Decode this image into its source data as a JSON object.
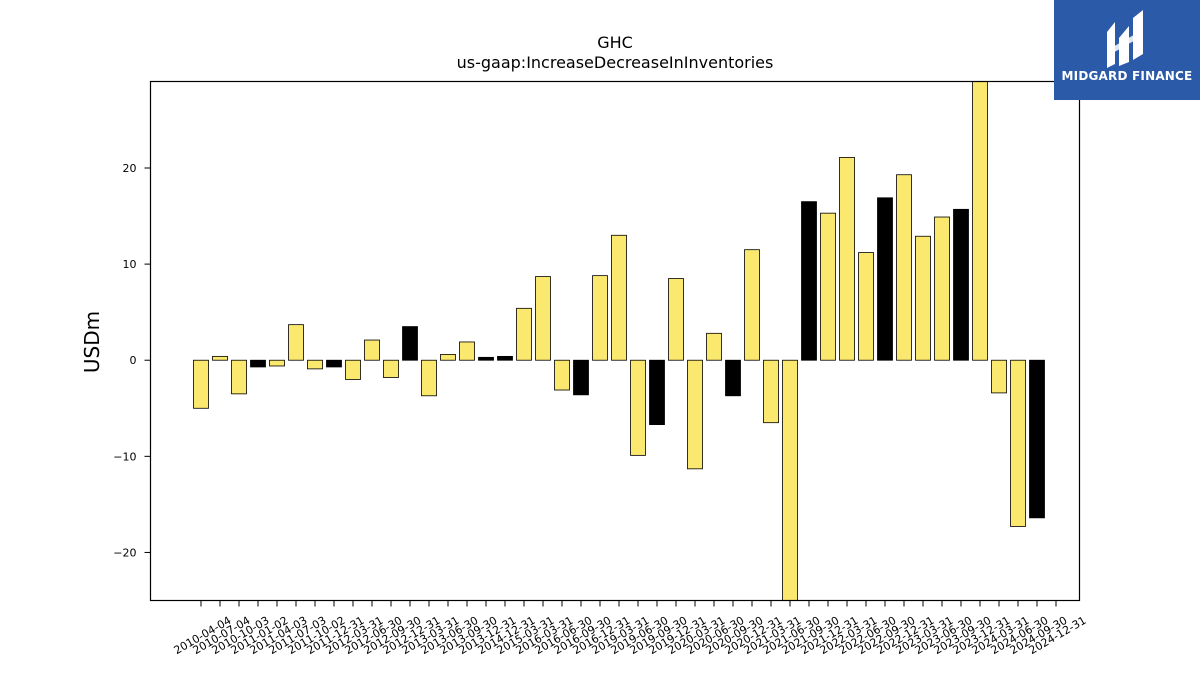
{
  "brand": {
    "name": "MIDGARD FINANCE",
    "bg_color": "#2a5aa8"
  },
  "chart_data": {
    "type": "bar",
    "title": "GHC",
    "subtitle": "us-gaap:IncreaseDecreaseInInventories",
    "xlabel": "",
    "ylabel": "USDm",
    "ylim": [
      -25,
      29
    ],
    "yticks": [
      -20,
      -10,
      0,
      10,
      20
    ],
    "ytick_labels": [
      "−20",
      "−10",
      "0",
      "10",
      "20"
    ],
    "grid": false,
    "colors": {
      "yellow": "#fbe86e",
      "black": "#000000"
    },
    "categories": [
      "2010-04-04",
      "2010-07-04",
      "2010-10-03",
      "2011-01-02",
      "2011-04-03",
      "2011-07-03",
      "2011-10-02",
      "2011-12-31",
      "2012-03-31",
      "2012-06-30",
      "2012-09-30",
      "2012-12-31",
      "2013-03-31",
      "2013-06-30",
      "2013-09-30",
      "2013-12-31",
      "2014-12-31",
      "2015-03-31",
      "2016-03-31",
      "2016-06-30",
      "2016-09-30",
      "2016-12-31",
      "2019-03-31",
      "2019-06-30",
      "2019-09-30",
      "2019-12-31",
      "2020-03-31",
      "2020-06-30",
      "2020-09-30",
      "2020-12-31",
      "2021-03-31",
      "2021-06-30",
      "2021-09-30",
      "2021-12-31",
      "2022-03-31",
      "2022-06-30",
      "2022-09-30",
      "2022-12-31",
      "2023-03-31",
      "2023-06-30",
      "2023-09-30",
      "2023-12-31",
      "2024-03-31",
      "2024-06-30",
      "2024-09-30",
      "2024-12-31"
    ],
    "values": [
      -5.0,
      0.4,
      -3.5,
      -0.7,
      -0.6,
      3.7,
      -0.9,
      -0.7,
      -2.0,
      2.1,
      -1.8,
      3.5,
      -3.7,
      0.6,
      1.9,
      0.3,
      0.4,
      5.4,
      8.7,
      -3.1,
      -3.6,
      8.8,
      13.0,
      -9.9,
      -6.7,
      8.5,
      -11.3,
      2.8,
      -3.7,
      11.5,
      -6.5,
      -25.0,
      16.5,
      15.3,
      21.1,
      11.2,
      16.9,
      19.3,
      12.9,
      14.9,
      15.7,
      29.0,
      -3.4,
      -17.3,
      -16.4,
      0
    ],
    "bar_colors": [
      "yellow",
      "yellow",
      "yellow",
      "black",
      "yellow",
      "yellow",
      "yellow",
      "black",
      "yellow",
      "yellow",
      "yellow",
      "black",
      "yellow",
      "yellow",
      "yellow",
      "black",
      "black",
      "yellow",
      "yellow",
      "yellow",
      "black",
      "yellow",
      "yellow",
      "yellow",
      "black",
      "yellow",
      "yellow",
      "yellow",
      "black",
      "yellow",
      "yellow",
      "yellow",
      "black",
      "yellow",
      "yellow",
      "yellow",
      "black",
      "yellow",
      "yellow",
      "yellow",
      "black",
      "yellow",
      "yellow",
      "yellow",
      "black",
      "yellow"
    ]
  }
}
